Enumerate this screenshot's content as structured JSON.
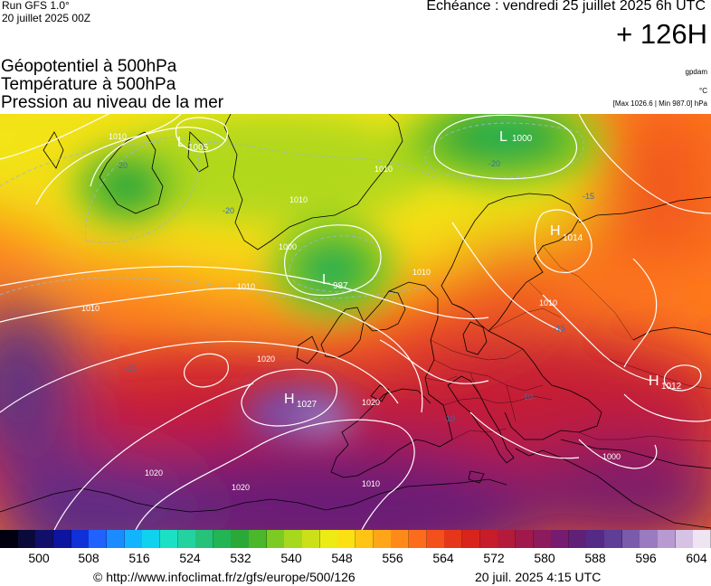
{
  "header": {
    "run": "Run GFS 1.0°",
    "run_date": "20 juillet 2025 00Z",
    "valid": "Echéance : vendredi 25 juillet 2025 6h UTC",
    "lead": "+ 126H"
  },
  "titles": [
    "Géopotentiel à 500hPa",
    "Température à 500hPa",
    "Pression au niveau de la mer"
  ],
  "units": {
    "geopotential": "gpdam",
    "temperature": "°C",
    "pressure": "[Max 1026.6 | Min 987.0] hPa"
  },
  "legend": {
    "ticks": [
      "500",
      "508",
      "516",
      "524",
      "532",
      "540",
      "548",
      "556",
      "564",
      "572",
      "580",
      "588",
      "596",
      "604"
    ],
    "colors": [
      "#000010",
      "#0a0a3a",
      "#10106a",
      "#0d14a0",
      "#1030d8",
      "#1f62ff",
      "#1a8cff",
      "#12b4ff",
      "#10d2ee",
      "#1ce0c4",
      "#22d3a0",
      "#26c27a",
      "#22b455",
      "#2aa838",
      "#4ab82a",
      "#7ccb22",
      "#a6d81e",
      "#cce01a",
      "#eceb14",
      "#fbe014",
      "#ffc414",
      "#ffa618",
      "#ff8a1a",
      "#fc6c1c",
      "#f4501c",
      "#e6361a",
      "#d8241c",
      "#c71c2a",
      "#b41a3a",
      "#a0194a",
      "#8c1a5c",
      "#761c70",
      "#602078",
      "#542a86",
      "#5e3e96",
      "#7a5aaa",
      "#9a7ac0",
      "#b89ad2",
      "#d6c2e4",
      "#eee4f2"
    ]
  },
  "map": {
    "pressure_centers": [
      {
        "type": "L",
        "value": "1000"
      },
      {
        "type": "L",
        "value": "1005"
      },
      {
        "type": "L",
        "value": "987"
      },
      {
        "type": "H",
        "value": "1014"
      },
      {
        "type": "H",
        "value": "1027"
      },
      {
        "type": "H",
        "value": "1012"
      }
    ],
    "isobar_labels": [
      "1010",
      "1010",
      "1010",
      "1010",
      "1000",
      "1010",
      "1010",
      "1020",
      "1020",
      "1020",
      "1020",
      "1010",
      "1010",
      "1000"
    ],
    "isotherm_labels": [
      "-20",
      "-20",
      "-20",
      "-15",
      "-15",
      "-15",
      "-10",
      "-10"
    ]
  },
  "footer": {
    "credit": "© http://www.infoclimat.fr/z/gfs/europe/500/126",
    "run_time": "20 juil. 2025  4:15 UTC"
  }
}
